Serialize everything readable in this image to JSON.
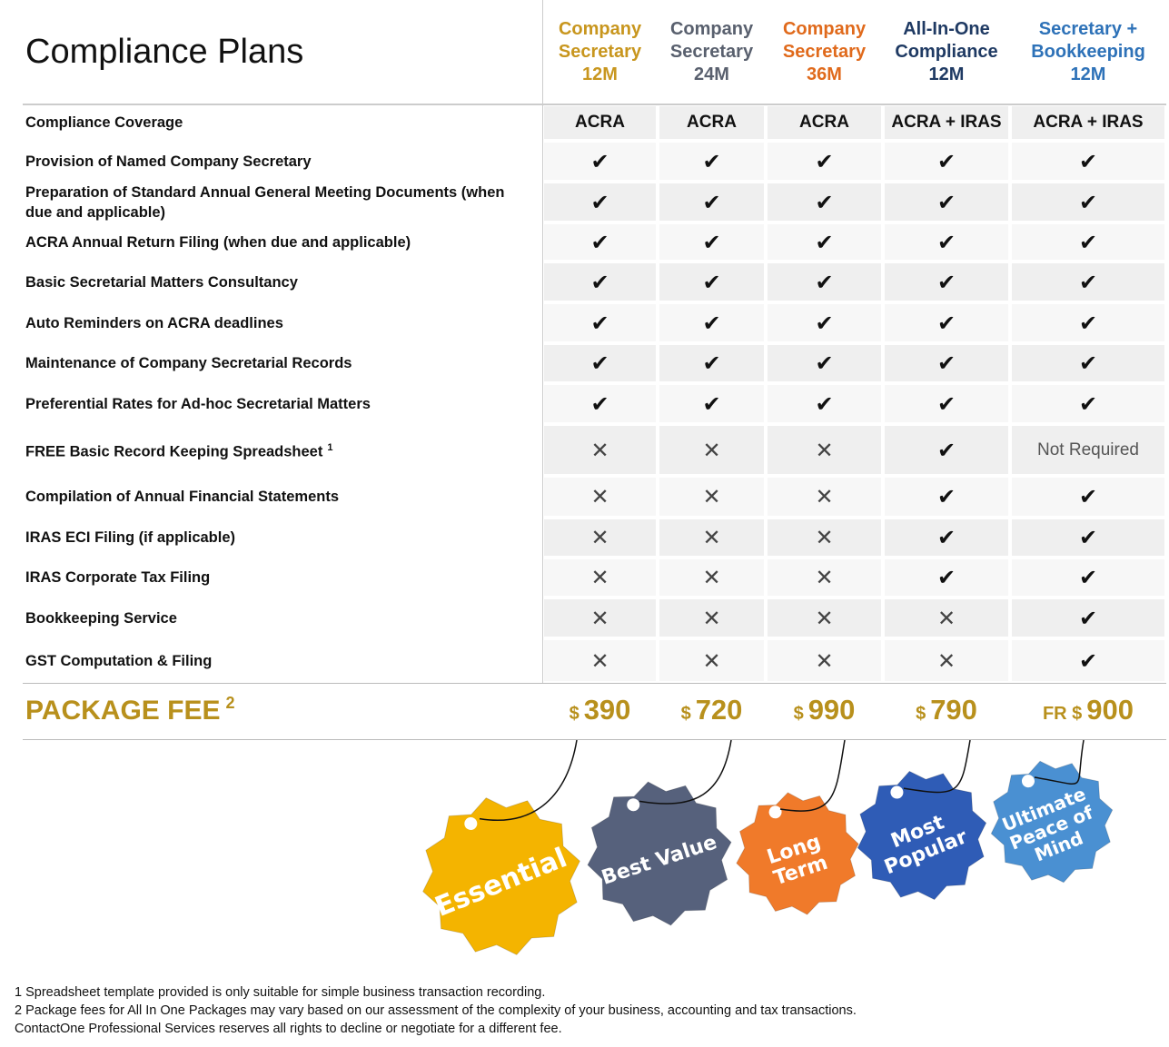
{
  "title": "Compliance Plans",
  "plans": [
    {
      "name": [
        "Company",
        "Secretary",
        "12M"
      ],
      "color": "#c8961e"
    },
    {
      "name": [
        "Company",
        "Secretary",
        "24M"
      ],
      "color": "#59606e"
    },
    {
      "name": [
        "Company",
        "Secretary",
        "36M"
      ],
      "color": "#e06a1c"
    },
    {
      "name": [
        "All-In-One",
        "Compliance",
        "12M"
      ],
      "color": "#1f3a63"
    },
    {
      "name": [
        "Secretary +",
        "Bookkeeping",
        "12M"
      ],
      "color": "#2e72b8"
    }
  ],
  "rows": [
    {
      "label": "Compliance Coverage",
      "cells": [
        "ACRA",
        "ACRA",
        "ACRA",
        "ACRA + IRAS",
        "ACRA + IRAS"
      ]
    },
    {
      "label": "Provision of Named Company Secretary",
      "cells": [
        "✔",
        "✔",
        "✔",
        "✔",
        "✔"
      ]
    },
    {
      "label": "Preparation of Standard Annual General Meeting Documents (when due and applicable)",
      "cells": [
        "✔",
        "✔",
        "✔",
        "✔",
        "✔"
      ]
    },
    {
      "label": "ACRA Annual Return Filing (when due and applicable)",
      "cells": [
        "✔",
        "✔",
        "✔",
        "✔",
        "✔"
      ]
    },
    {
      "label": "Basic Secretarial Matters Consultancy",
      "cells": [
        "✔",
        "✔",
        "✔",
        "✔",
        "✔"
      ]
    },
    {
      "label": "Auto Reminders on ACRA deadlines",
      "cells": [
        "✔",
        "✔",
        "✔",
        "✔",
        "✔"
      ]
    },
    {
      "label": "Maintenance of Company Secretarial Records",
      "cells": [
        "✔",
        "✔",
        "✔",
        "✔",
        "✔"
      ]
    },
    {
      "label": "Preferential Rates for Ad-hoc Secretarial Matters",
      "cells": [
        "✔",
        "✔",
        "✔",
        "✔",
        "✔"
      ]
    },
    {
      "label": "FREE Basic Record Keeping Spreadsheet",
      "note": "1",
      "cells": [
        "✕",
        "✕",
        "✕",
        "✔",
        "Not Required"
      ]
    },
    {
      "label": "Compilation of Annual Financial Statements",
      "cells": [
        "✕",
        "✕",
        "✕",
        "✔",
        "✔"
      ]
    },
    {
      "label": "IRAS ECI Filing (if applicable)",
      "cells": [
        "✕",
        "✕",
        "✕",
        "✔",
        "✔"
      ]
    },
    {
      "label": "IRAS Corporate Tax Filing",
      "cells": [
        "✕",
        "✕",
        "✕",
        "✔",
        "✔"
      ]
    },
    {
      "label": "Bookkeeping Service",
      "cells": [
        "✕",
        "✕",
        "✕",
        "✕",
        "✔"
      ]
    },
    {
      "label": "GST Computation & Filing",
      "cells": [
        "✕",
        "✕",
        "✕",
        "✕",
        "✔"
      ]
    }
  ],
  "fee": {
    "label": "PACKAGE FEE",
    "note": "2",
    "prices": [
      {
        "prefix": "$",
        "amount": "390"
      },
      {
        "prefix": "$",
        "amount": "720"
      },
      {
        "prefix": "$",
        "amount": "990"
      },
      {
        "prefix": "$",
        "amount": "790"
      },
      {
        "prefix": "FR $",
        "amount": "900"
      }
    ]
  },
  "tags": [
    {
      "lines": [
        "Essential"
      ],
      "color": "#f4b400"
    },
    {
      "lines": [
        "Best Value"
      ],
      "color": "#56617c"
    },
    {
      "lines": [
        "Long",
        "Term"
      ],
      "color": "#f07a2a"
    },
    {
      "lines": [
        "Most",
        "Popular"
      ],
      "color": "#2f5cb6"
    },
    {
      "lines": [
        "Ultimate",
        "Peace of",
        "Mind"
      ],
      "color": "#4a90d2"
    }
  ],
  "footnotes": [
    "1 Spreadsheet template provided is only suitable for simple business transaction recording.",
    "2 Package fees for All In One Packages may vary based on our assessment of the complexity of your business, accounting and tax transactions.",
    "ContactOne Professional Services reserves all rights to decline or negotiate for a different fee."
  ]
}
